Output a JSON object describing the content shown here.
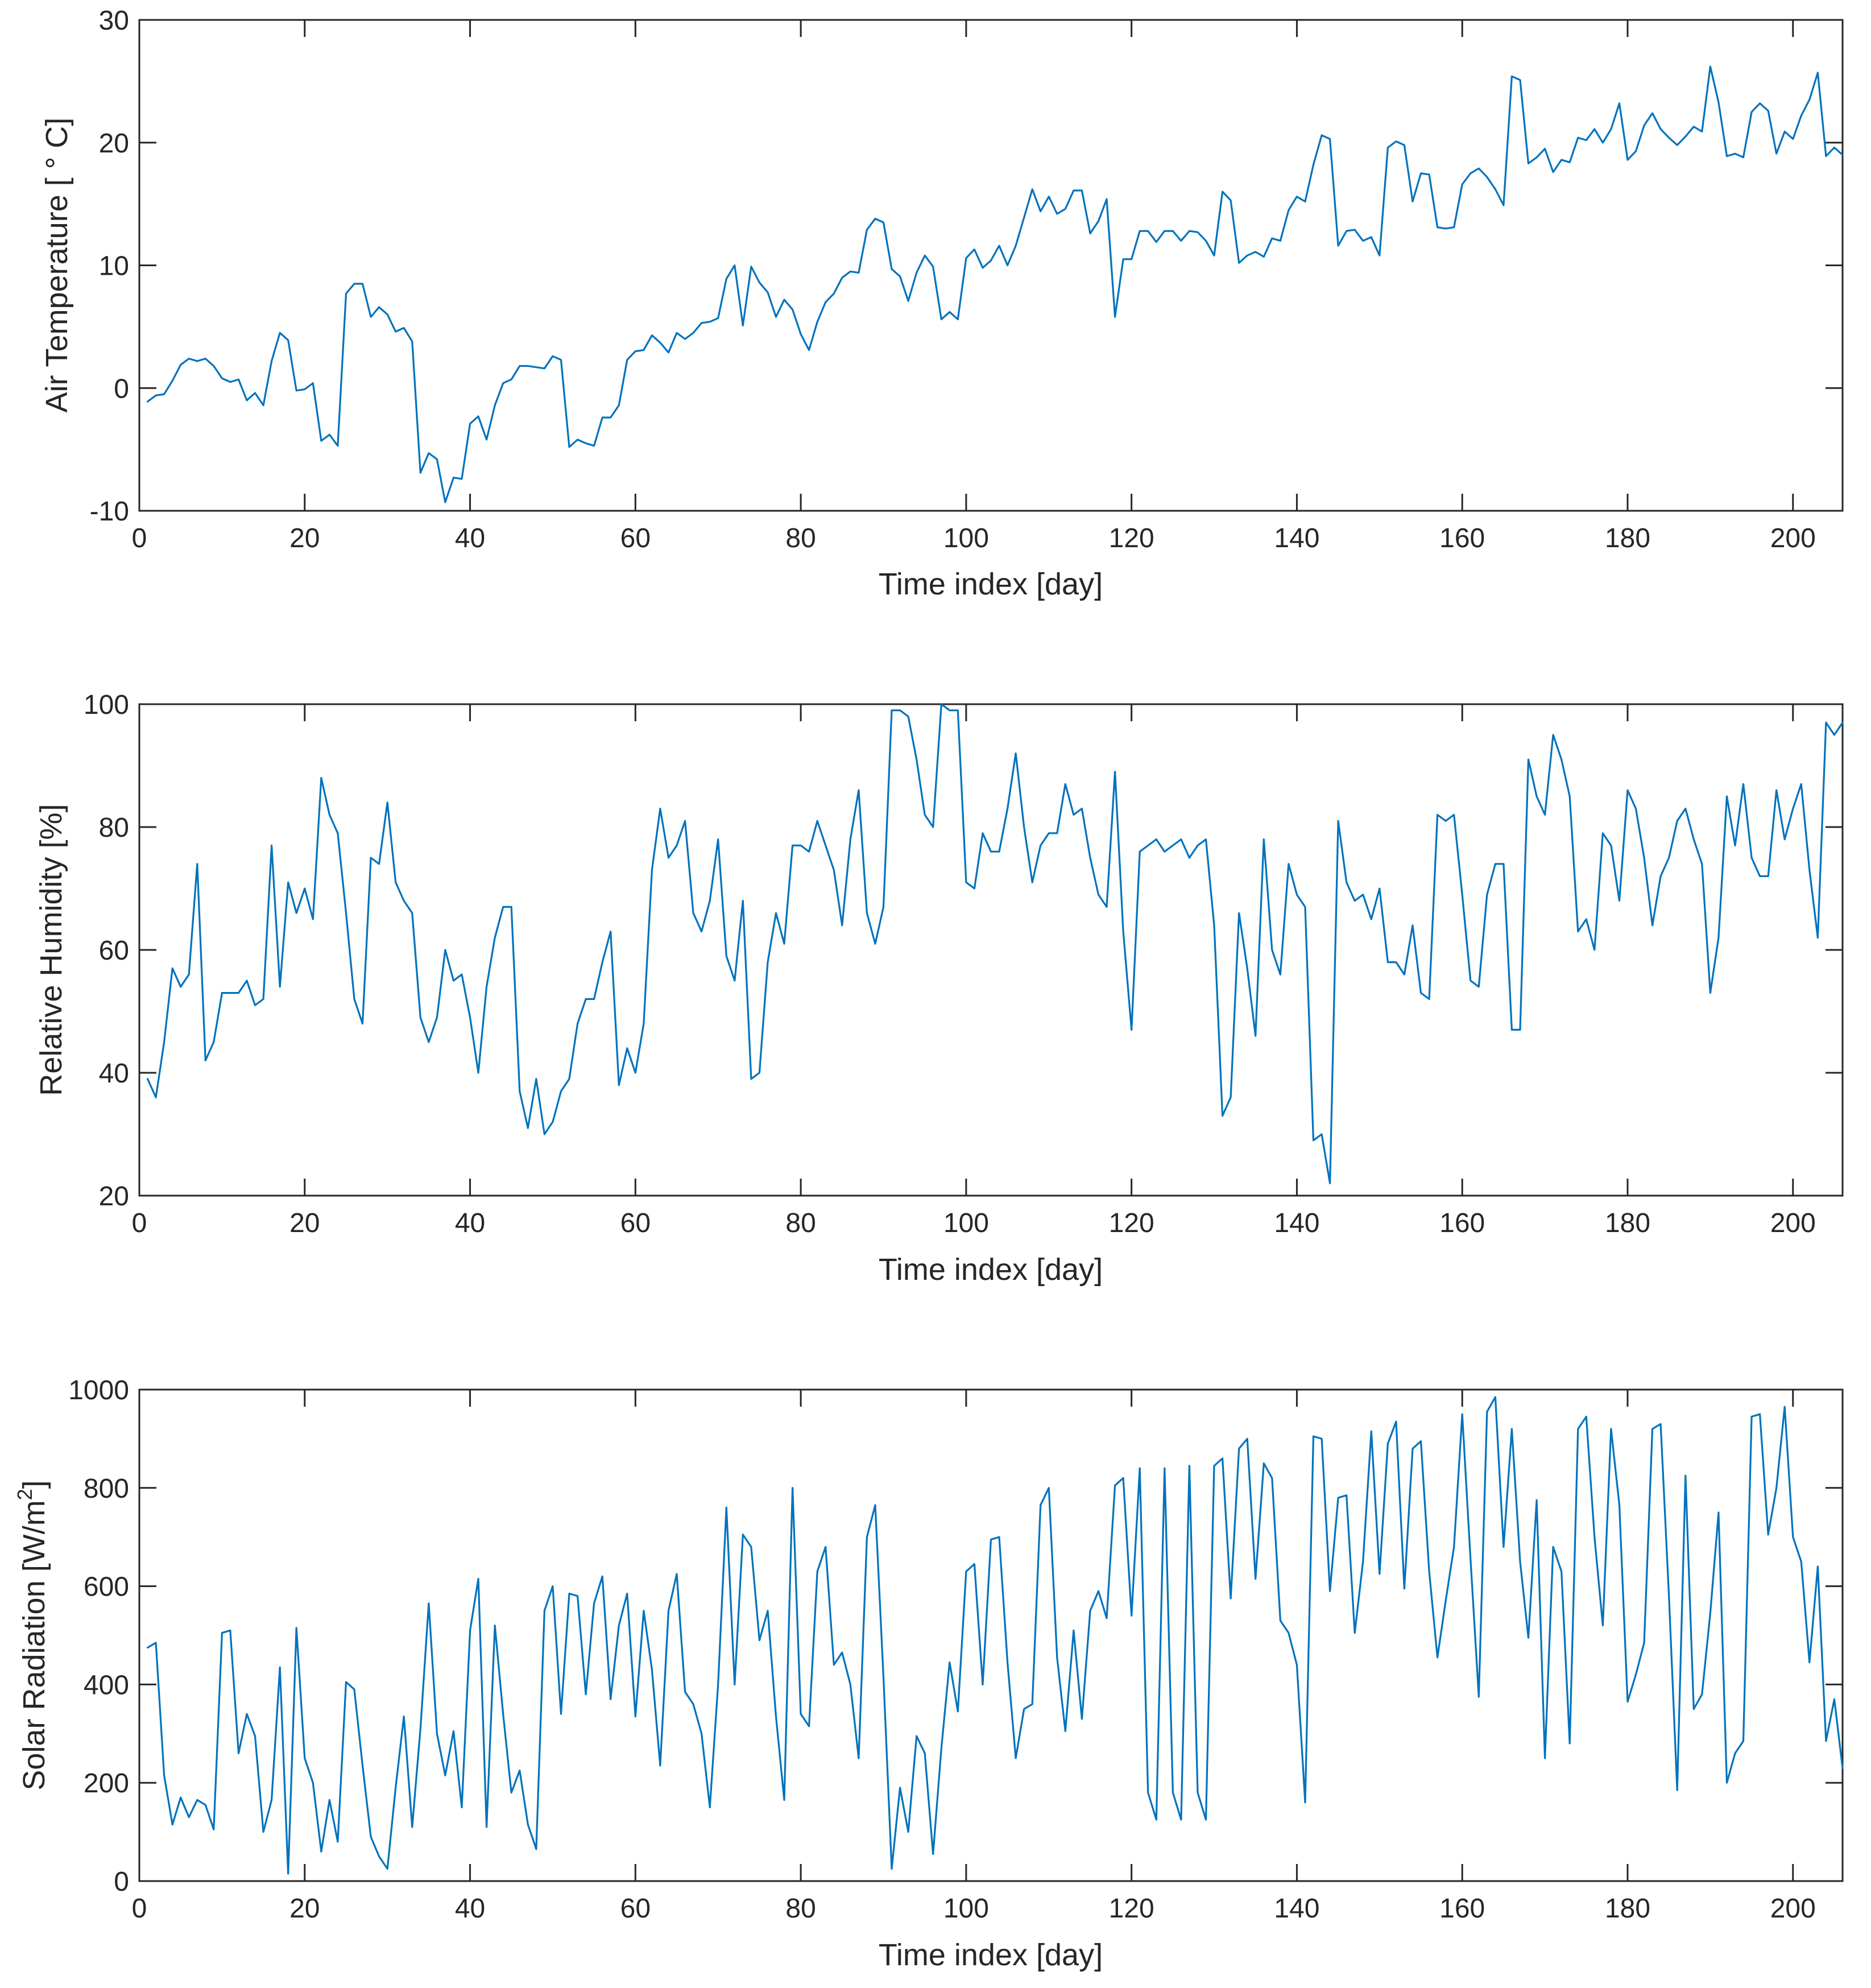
{
  "colors": {
    "series": "#0072BD",
    "axes": "#262626",
    "background": "#ffffff"
  },
  "chart_data": [
    {
      "type": "line",
      "xlabel": "Time index [day]",
      "ylabel": "Air Temperature [ ° C]",
      "xlim": [
        0,
        206
      ],
      "ylim": [
        -10,
        30
      ],
      "xticks": [
        0,
        20,
        40,
        60,
        80,
        100,
        120,
        140,
        160,
        180,
        200
      ],
      "xtick_labels": [
        "0",
        "20",
        "40",
        "60",
        "80",
        "100",
        "120",
        "140",
        "160",
        "180",
        "200"
      ],
      "yticks": [
        -10,
        0,
        10,
        20,
        30
      ],
      "ytick_labels": [
        "-10",
        "0",
        "10",
        "20",
        "30"
      ],
      "series": [
        {
          "name": "Air Temperature",
          "x_start": 1,
          "values": [
            -1.1,
            -0.6,
            -0.5,
            0.6,
            1.9,
            2.4,
            2.2,
            2.4,
            1.8,
            0.8,
            0.5,
            0.7,
            -1.0,
            -0.4,
            -1.4,
            2.2,
            4.5,
            3.9,
            -0.2,
            -0.1,
            0.4,
            -4.3,
            -3.8,
            -4.7,
            7.7,
            8.5,
            8.5,
            5.8,
            6.6,
            6.0,
            4.6,
            4.9,
            3.8,
            -6.9,
            -5.3,
            -5.8,
            -9.3,
            -7.3,
            -7.4,
            -2.9,
            -2.3,
            -4.2,
            -1.4,
            0.4,
            0.7,
            1.8,
            1.8,
            1.7,
            1.6,
            2.6,
            2.3,
            -4.8,
            -4.2,
            -4.5,
            -4.7,
            -2.4,
            -2.4,
            -1.4,
            2.3,
            3.0,
            3.1,
            4.3,
            3.7,
            2.9,
            4.5,
            4.0,
            4.5,
            5.3,
            5.4,
            5.7,
            8.9,
            10.0,
            5.1,
            9.9,
            8.6,
            7.8,
            5.8,
            7.2,
            6.4,
            4.4,
            3.1,
            5.4,
            7.0,
            7.7,
            9.0,
            9.5,
            9.4,
            12.9,
            13.8,
            13.5,
            9.7,
            9.1,
            7.1,
            9.4,
            10.8,
            9.9,
            5.6,
            6.2,
            5.6,
            10.6,
            11.3,
            9.8,
            10.4,
            11.6,
            10.0,
            11.6,
            13.9,
            16.2,
            14.4,
            15.6,
            14.2,
            14.6,
            16.1,
            16.1,
            12.6,
            13.6,
            15.4,
            5.8,
            10.5,
            10.5,
            12.8,
            12.8,
            11.9,
            12.8,
            12.8,
            12.0,
            12.8,
            12.7,
            12.0,
            10.8,
            16.0,
            15.3,
            10.2,
            10.8,
            11.1,
            10.7,
            12.2,
            12.0,
            14.5,
            15.6,
            15.2,
            18.2,
            20.6,
            20.3,
            11.6,
            12.8,
            12.9,
            12.0,
            12.3,
            10.8,
            19.6,
            20.1,
            19.8,
            15.2,
            17.5,
            17.4,
            13.1,
            13.0,
            13.1,
            16.6,
            17.5,
            17.9,
            17.2,
            16.2,
            14.9,
            25.4,
            25.1,
            18.3,
            18.8,
            19.5,
            17.6,
            18.6,
            18.4,
            20.4,
            20.2,
            21.1,
            20.0,
            21.1,
            23.2,
            18.6,
            19.3,
            21.4,
            22.4,
            21.1,
            20.4,
            19.8,
            20.5,
            21.3,
            20.9,
            26.2,
            23.3,
            18.9,
            19.1,
            18.8,
            22.5,
            23.2,
            22.6,
            19.1,
            20.9,
            20.3,
            22.2,
            23.5,
            25.7,
            18.9,
            19.6,
            19.0
          ]
        }
      ]
    },
    {
      "type": "line",
      "xlabel": "Time index [day]",
      "ylabel": "Relative Humidity [%]",
      "xlim": [
        0,
        206
      ],
      "ylim": [
        20,
        100
      ],
      "xticks": [
        0,
        20,
        40,
        60,
        80,
        100,
        120,
        140,
        160,
        180,
        200
      ],
      "xtick_labels": [
        "0",
        "20",
        "40",
        "60",
        "80",
        "100",
        "120",
        "140",
        "160",
        "180",
        "200"
      ],
      "yticks": [
        20,
        40,
        60,
        80,
        100
      ],
      "ytick_labels": [
        "20",
        "40",
        "60",
        "80",
        "100"
      ],
      "series": [
        {
          "name": "Relative Humidity",
          "x_start": 1,
          "values": [
            39,
            36,
            45,
            57,
            54,
            56,
            74,
            42,
            45,
            53,
            53,
            53,
            55,
            51,
            52,
            77,
            54,
            71,
            66,
            70,
            65,
            88,
            82,
            79,
            66,
            52,
            48,
            75,
            74,
            84,
            71,
            68,
            66,
            49,
            45,
            49,
            60,
            55,
            56,
            49,
            40,
            54,
            62,
            67,
            67,
            37,
            31,
            39,
            30,
            32,
            37,
            39,
            48,
            52,
            52,
            58,
            63,
            38,
            44,
            40,
            48,
            73,
            83,
            75,
            77,
            81,
            66,
            63,
            68,
            78,
            59,
            55,
            68,
            39,
            40,
            58,
            66,
            61,
            77,
            77,
            76,
            81,
            77,
            73,
            64,
            78,
            86,
            66,
            61,
            67,
            99,
            99,
            98,
            91,
            82,
            80,
            100,
            99,
            99,
            71,
            70,
            79,
            76,
            76,
            83,
            92,
            80,
            71,
            77,
            79,
            79,
            87,
            82,
            83,
            75,
            69,
            67,
            89,
            63,
            47,
            76,
            77,
            78,
            76,
            77,
            78,
            75,
            77,
            78,
            64,
            33,
            36,
            66,
            57,
            46,
            78,
            60,
            56,
            74,
            69,
            67,
            29,
            30,
            22,
            81,
            71,
            68,
            69,
            65,
            70,
            58,
            58,
            56,
            64,
            53,
            52,
            82,
            81,
            82,
            69,
            55,
            54,
            69,
            74,
            74,
            47,
            47,
            91,
            85,
            82,
            95,
            91,
            85,
            63,
            65,
            60,
            79,
            77,
            68,
            86,
            83,
            75,
            64,
            72,
            75,
            81,
            83,
            78,
            74,
            53,
            62,
            85,
            77,
            87,
            75,
            72,
            72,
            86,
            78,
            83,
            87,
            73,
            62,
            97,
            95,
            97
          ]
        }
      ]
    },
    {
      "type": "line",
      "xlabel": "Time index  [day]",
      "ylabel": "Solar Radiation [W/m",
      "ylabel_sup": "2",
      "ylabel_end": "]",
      "xlim": [
        0,
        206
      ],
      "ylim": [
        0,
        1000
      ],
      "xticks": [
        0,
        20,
        40,
        60,
        80,
        100,
        120,
        140,
        160,
        180,
        200
      ],
      "xtick_labels": [
        "0",
        "20",
        "40",
        "60",
        "80",
        "100",
        "120",
        "140",
        "160",
        "180",
        "200"
      ],
      "yticks": [
        0,
        200,
        400,
        600,
        800,
        1000
      ],
      "ytick_labels": [
        "0",
        "200",
        "400",
        "600",
        "800",
        "1000"
      ],
      "series": [
        {
          "name": "Solar Radiation",
          "x_start": 1,
          "values": [
            475,
            485,
            215,
            115,
            170,
            130,
            165,
            155,
            105,
            505,
            510,
            260,
            340,
            295,
            100,
            165,
            435,
            15,
            515,
            250,
            200,
            60,
            165,
            80,
            405,
            390,
            235,
            90,
            50,
            25,
            190,
            335,
            110,
            310,
            565,
            300,
            215,
            305,
            150,
            510,
            615,
            110,
            520,
            340,
            180,
            225,
            115,
            65,
            550,
            600,
            340,
            585,
            580,
            380,
            565,
            620,
            370,
            520,
            585,
            335,
            550,
            430,
            235,
            550,
            625,
            385,
            360,
            300,
            150,
            400,
            760,
            400,
            705,
            680,
            490,
            550,
            335,
            165,
            800,
            340,
            315,
            630,
            680,
            440,
            465,
            400,
            250,
            700,
            765,
            415,
            25,
            190,
            100,
            295,
            260,
            55,
            270,
            445,
            345,
            630,
            645,
            400,
            695,
            700,
            445,
            250,
            350,
            360,
            765,
            800,
            455,
            305,
            510,
            330,
            550,
            590,
            535,
            805,
            820,
            540,
            840,
            180,
            125,
            840,
            180,
            125,
            845,
            180,
            125,
            845,
            860,
            575,
            880,
            900,
            615,
            850,
            820,
            530,
            505,
            440,
            160,
            905,
            900,
            590,
            780,
            785,
            505,
            650,
            915,
            625,
            890,
            935,
            595,
            880,
            895,
            630,
            455,
            570,
            680,
            950,
            655,
            375,
            955,
            985,
            680,
            920,
            650,
            495,
            775,
            250,
            680,
            630,
            280,
            920,
            945,
            700,
            520,
            920,
            765,
            365,
            420,
            485,
            920,
            930,
            580,
            185,
            825,
            350,
            380,
            545,
            750,
            200,
            260,
            285,
            945,
            950,
            705,
            800,
            965,
            700,
            650,
            445,
            640,
            285,
            370,
            230
          ]
        }
      ]
    }
  ]
}
